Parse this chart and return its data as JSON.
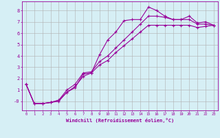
{
  "xlabel": "Windchill (Refroidissement éolien,°C)",
  "bg_color": "#d6eff5",
  "line_color": "#990099",
  "grid_color": "#b0b0b0",
  "line1_x": [
    0,
    1,
    2,
    3,
    4,
    5,
    6,
    7,
    8,
    9,
    10,
    11,
    12,
    13,
    14,
    15,
    16,
    17,
    18,
    19,
    20,
    21,
    22,
    23
  ],
  "line1_y": [
    1.5,
    -0.2,
    -0.2,
    -0.1,
    0.0,
    0.8,
    1.2,
    2.4,
    2.5,
    4.1,
    5.4,
    6.1,
    7.1,
    7.2,
    7.2,
    8.3,
    8.0,
    7.5,
    7.2,
    7.2,
    7.5,
    6.9,
    7.0,
    6.7
  ],
  "line2_x": [
    0,
    1,
    2,
    3,
    4,
    5,
    6,
    7,
    8,
    9,
    10,
    11,
    12,
    13,
    14,
    15,
    16,
    17,
    18,
    19,
    20,
    21,
    22,
    23
  ],
  "line2_y": [
    1.5,
    -0.2,
    -0.2,
    -0.1,
    0.1,
    1.0,
    1.5,
    2.5,
    2.6,
    3.5,
    4.0,
    4.7,
    5.4,
    6.1,
    6.8,
    7.5,
    7.5,
    7.4,
    7.2,
    7.2,
    7.2,
    6.8,
    6.8,
    6.7
  ],
  "line3_x": [
    0,
    1,
    2,
    3,
    4,
    5,
    6,
    7,
    8,
    9,
    10,
    11,
    12,
    13,
    14,
    15,
    16,
    17,
    18,
    19,
    20,
    21,
    22,
    23
  ],
  "line3_y": [
    1.5,
    -0.2,
    -0.2,
    -0.1,
    0.1,
    0.8,
    1.3,
    2.2,
    2.5,
    3.2,
    3.6,
    4.3,
    4.9,
    5.5,
    6.1,
    6.7,
    6.7,
    6.7,
    6.7,
    6.7,
    6.7,
    6.5,
    6.6,
    6.7
  ],
  "ylim": [
    -0.8,
    8.8
  ],
  "xlim": [
    -0.5,
    23.5
  ],
  "yticks": [
    0,
    1,
    2,
    3,
    4,
    5,
    6,
    7,
    8
  ],
  "ytick_labels": [
    "-0",
    "1",
    "2",
    "3",
    "4",
    "5",
    "6",
    "7",
    "8"
  ],
  "xticks": [
    0,
    1,
    2,
    3,
    4,
    5,
    6,
    7,
    8,
    9,
    10,
    11,
    12,
    13,
    14,
    15,
    16,
    17,
    18,
    19,
    20,
    21,
    22,
    23
  ],
  "marker": "+",
  "linewidth": 0.8,
  "markersize": 2.5,
  "xlabel_fontsize": 5.0,
  "xtick_fontsize": 4.0,
  "ytick_fontsize": 5.0
}
